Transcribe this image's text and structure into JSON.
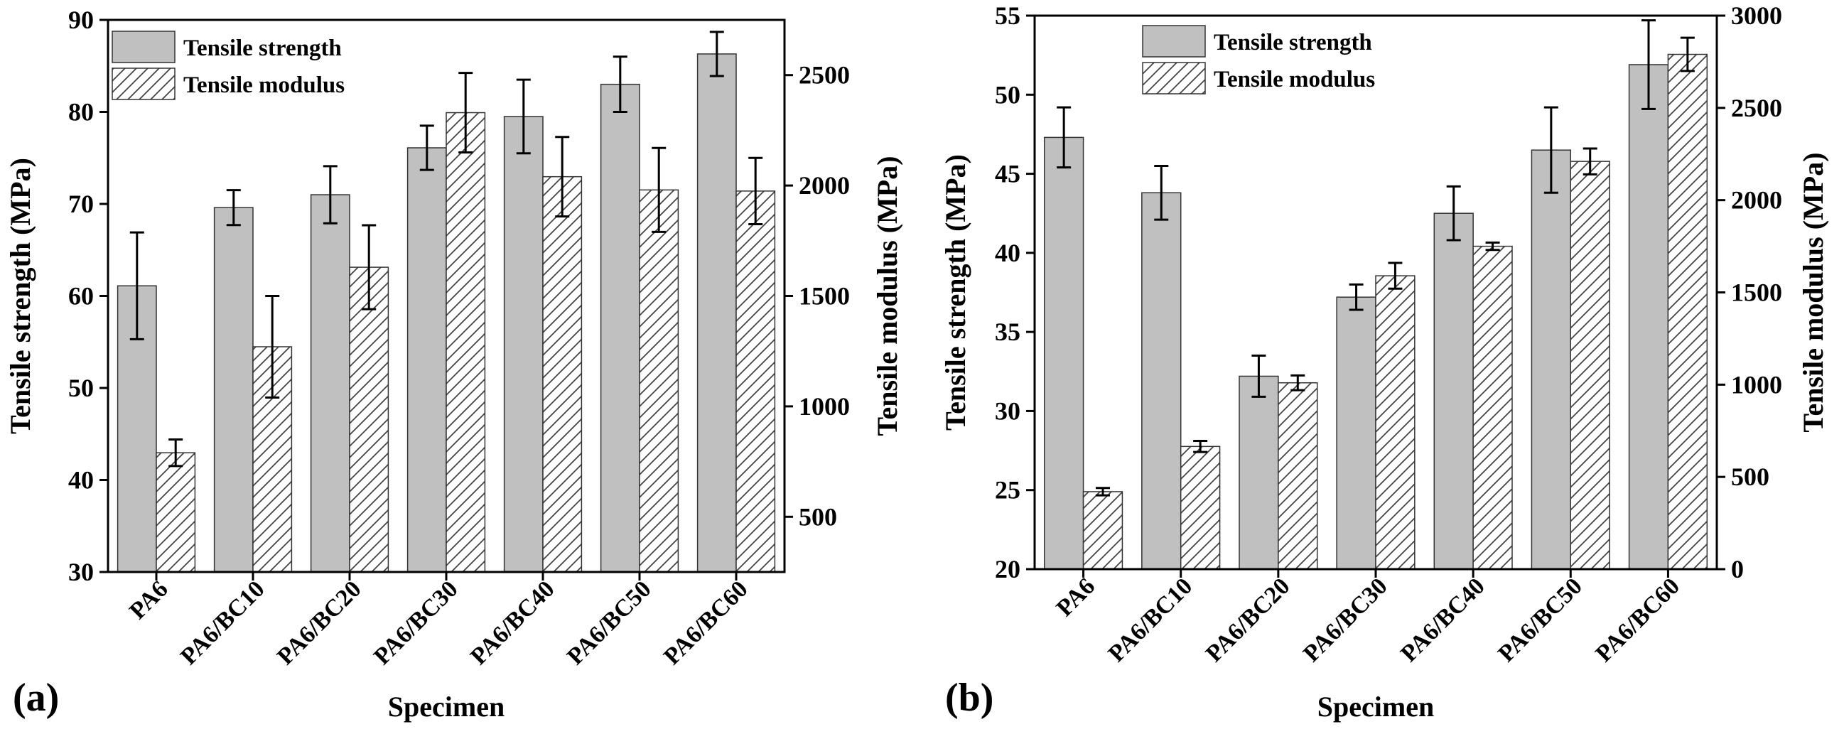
{
  "figure": {
    "panels": [
      "(a)",
      "(b)"
    ]
  },
  "chart_data": [
    {
      "type": "bar",
      "panel_label": "(a)",
      "categories": [
        "PA6",
        "PA6/BC10",
        "PA6/BC20",
        "PA6/BC30",
        "PA6/BC40",
        "PA6/BC50",
        "PA6/BC60"
      ],
      "xlabel": "Specimen",
      "ylabel": "Tensile strength (MPa)",
      "y2label": "Tensile modulus (MPa)",
      "ylim": [
        30,
        90
      ],
      "yticks": [
        30,
        40,
        50,
        60,
        70,
        80,
        90
      ],
      "y2lim": [
        250,
        2750
      ],
      "y2ticks": [
        500,
        1000,
        1500,
        2000,
        2500
      ],
      "legend_position": "top-left",
      "series": [
        {
          "name": "Tensile strength",
          "axis": "left",
          "fill": "#c0c0c0",
          "pattern": "solid",
          "values": [
            61.1,
            69.6,
            71.0,
            76.1,
            79.5,
            83.0,
            86.3
          ],
          "errors": [
            5.8,
            1.9,
            3.1,
            2.4,
            4.0,
            3.0,
            2.4
          ]
        },
        {
          "name": "Tensile modulus",
          "axis": "right",
          "fill": "#ffffff",
          "pattern": "hatch",
          "values": [
            790,
            1270,
            1630,
            2330,
            2040,
            1980,
            1975
          ],
          "errors": [
            60,
            230,
            190,
            180,
            180,
            190,
            150
          ]
        }
      ]
    },
    {
      "type": "bar",
      "panel_label": "(b)",
      "categories": [
        "PA6",
        "PA6/BC10",
        "PA6/BC20",
        "PA6/BC30",
        "PA6/BC40",
        "PA6/BC50",
        "PA6/BC60"
      ],
      "xlabel": "Specimen",
      "ylabel": "Tensile strength (MPa)",
      "y2label": "Tensile modulus (MPa)",
      "ylim": [
        20,
        55
      ],
      "yticks": [
        20,
        25,
        30,
        35,
        40,
        45,
        50,
        55
      ],
      "y2lim": [
        0,
        3000
      ],
      "y2ticks": [
        0,
        500,
        1000,
        1500,
        2000,
        2500,
        3000
      ],
      "legend_position": "top-left",
      "series": [
        {
          "name": "Tensile strength",
          "axis": "left",
          "fill": "#c0c0c0",
          "pattern": "solid",
          "values": [
            47.3,
            43.8,
            32.2,
            37.2,
            42.5,
            46.5,
            51.9
          ],
          "errors": [
            1.9,
            1.7,
            1.3,
            0.8,
            1.7,
            2.7,
            2.8
          ]
        },
        {
          "name": "Tensile modulus",
          "axis": "right",
          "fill": "#ffffff",
          "pattern": "hatch",
          "values": [
            420,
            665,
            1010,
            1590,
            1750,
            2210,
            2790
          ],
          "errors": [
            20,
            30,
            40,
            70,
            20,
            70,
            90
          ]
        }
      ]
    }
  ]
}
